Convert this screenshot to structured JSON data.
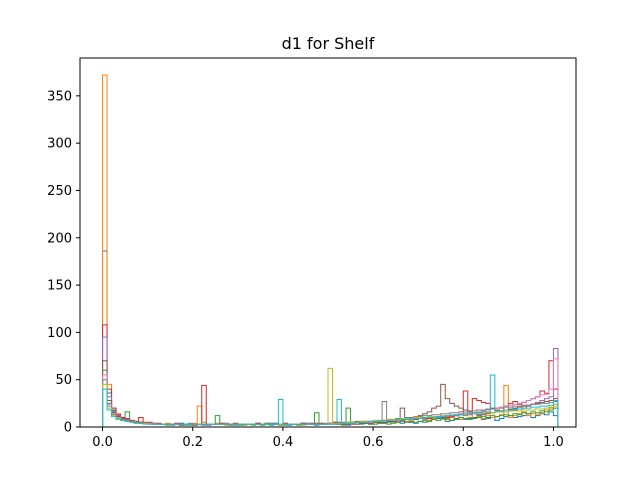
{
  "chart_data": {
    "type": "histogram",
    "title": "d1 for Shelf",
    "xlabel": "",
    "ylabel": "",
    "xlim": [
      -0.05,
      1.05
    ],
    "ylim": [
      0,
      390
    ],
    "xticks": [
      0.0,
      0.2,
      0.4,
      0.6,
      0.8,
      1.0
    ],
    "xtick_labels": [
      "0.0",
      "0.2",
      "0.4",
      "0.6",
      "0.8",
      "1.0"
    ],
    "yticks": [
      0,
      50,
      100,
      150,
      200,
      250,
      300,
      350
    ],
    "ytick_labels": [
      "0",
      "50",
      "100",
      "150",
      "200",
      "250",
      "300",
      "350"
    ],
    "grid": false,
    "legend": "none",
    "histtype": "step",
    "bin_width": 0.01,
    "series": [
      {
        "color": "#1f77b4",
        "values": [
          186,
          36,
          18,
          12,
          9,
          8,
          6,
          5,
          5,
          4,
          4,
          3,
          3,
          3,
          3,
          2,
          3,
          4,
          3,
          2,
          3,
          3,
          2,
          2,
          3,
          3,
          4,
          3,
          3,
          2,
          3,
          2,
          3,
          3,
          4,
          3,
          3,
          2,
          4,
          3,
          3,
          2,
          3,
          3,
          4,
          3,
          3,
          2,
          3,
          3,
          4,
          5,
          3,
          3,
          2,
          4,
          5,
          6,
          4,
          3,
          5,
          4,
          4,
          5,
          6,
          5,
          4,
          6,
          5,
          4,
          6,
          5,
          7,
          8,
          9,
          10,
          6,
          7,
          9,
          8,
          8,
          9,
          10,
          12,
          8,
          9,
          10,
          7,
          9,
          11,
          12,
          10,
          11,
          12,
          14,
          10,
          12,
          14,
          13,
          16,
          12
        ]
      },
      {
        "color": "#ff7f0e",
        "values": [
          372,
          45,
          20,
          14,
          10,
          9,
          7,
          6,
          5,
          4,
          4,
          3,
          3,
          3,
          4,
          3,
          3,
          2,
          2,
          3,
          4,
          22,
          5,
          3,
          3,
          4,
          3,
          2,
          2,
          3,
          3,
          2,
          3,
          3,
          3,
          2,
          4,
          3,
          3,
          3,
          4,
          3,
          3,
          3,
          2,
          4,
          3,
          3,
          4,
          3,
          3,
          4,
          3,
          3,
          4,
          3,
          3,
          4,
          4,
          3,
          5,
          5,
          6,
          7,
          5,
          6,
          8,
          6,
          7,
          8,
          9,
          8,
          7,
          9,
          10,
          8,
          9,
          10,
          12,
          8,
          9,
          10,
          14,
          11,
          9,
          12,
          10,
          11,
          13,
          44,
          10,
          12,
          14,
          16,
          12,
          14,
          13,
          15,
          18,
          20,
          24
        ]
      },
      {
        "color": "#2ca02c",
        "values": [
          60,
          25,
          16,
          11,
          9,
          16,
          6,
          5,
          5,
          4,
          4,
          3,
          3,
          3,
          2,
          3,
          3,
          2,
          2,
          3,
          2,
          3,
          3,
          2,
          3,
          12,
          3,
          3,
          2,
          3,
          2,
          3,
          3,
          2,
          3,
          2,
          4,
          3,
          3,
          2,
          2,
          3,
          3,
          2,
          4,
          3,
          3,
          15,
          3,
          3,
          4,
          3,
          3,
          2,
          20,
          3,
          3,
          3,
          4,
          3,
          3,
          4,
          4,
          3,
          4,
          5,
          6,
          5,
          6,
          5,
          6,
          7,
          6,
          8,
          7,
          9,
          8,
          7,
          8,
          10,
          9,
          8,
          9,
          10,
          11,
          10,
          12,
          11,
          12,
          13,
          12,
          14,
          13,
          15,
          14,
          16,
          15,
          17,
          16,
          18,
          20
        ]
      },
      {
        "color": "#d62728",
        "values": [
          108,
          40,
          20,
          13,
          10,
          9,
          7,
          6,
          10,
          5,
          5,
          4,
          4,
          3,
          3,
          3,
          4,
          3,
          3,
          3,
          2,
          3,
          44,
          3,
          3,
          3,
          4,
          3,
          3,
          4,
          3,
          3,
          3,
          3,
          4,
          3,
          3,
          4,
          3,
          3,
          4,
          3,
          3,
          3,
          4,
          3,
          4,
          4,
          4,
          3,
          4,
          5,
          5,
          4,
          5,
          5,
          6,
          5,
          6,
          6,
          5,
          6,
          7,
          6,
          7,
          8,
          7,
          8,
          9,
          8,
          9,
          10,
          9,
          10,
          11,
          12,
          10,
          11,
          12,
          13,
          38,
          14,
          30,
          28,
          26,
          25,
          20,
          18,
          16,
          22,
          25,
          27,
          24,
          26,
          28,
          30,
          32,
          38,
          35,
          70,
          40
        ]
      },
      {
        "color": "#9467bd",
        "values": [
          95,
          32,
          17,
          12,
          9,
          8,
          6,
          5,
          5,
          4,
          4,
          4,
          3,
          3,
          3,
          3,
          3,
          3,
          3,
          4,
          3,
          3,
          3,
          2,
          3,
          3,
          3,
          4,
          3,
          3,
          3,
          3,
          3,
          3,
          3,
          3,
          3,
          4,
          3,
          3,
          3,
          3,
          3,
          3,
          3,
          4,
          3,
          3,
          3,
          4,
          4,
          4,
          4,
          5,
          4,
          5,
          5,
          5,
          5,
          6,
          5,
          6,
          6,
          7,
          6,
          7,
          7,
          8,
          8,
          9,
          9,
          9,
          10,
          11,
          10,
          11,
          11,
          12,
          12,
          13,
          12,
          13,
          14,
          13,
          14,
          15,
          15,
          16,
          17,
          16,
          17,
          18,
          19,
          20,
          22,
          24,
          26,
          28,
          30,
          32,
          83
        ]
      },
      {
        "color": "#8c564b",
        "values": [
          70,
          28,
          15,
          11,
          9,
          7,
          6,
          5,
          5,
          4,
          4,
          3,
          3,
          3,
          3,
          3,
          3,
          2,
          3,
          3,
          3,
          3,
          3,
          3,
          3,
          3,
          3,
          3,
          3,
          3,
          3,
          3,
          3,
          3,
          3,
          3,
          3,
          3,
          3,
          3,
          3,
          3,
          3,
          3,
          3,
          3,
          3,
          3,
          3,
          3,
          3,
          3,
          3,
          3,
          3,
          3,
          3,
          4,
          4,
          4,
          5,
          5,
          5,
          6,
          6,
          7,
          20,
          8,
          9,
          10,
          12,
          14,
          16,
          20,
          22,
          45,
          30,
          25,
          22,
          20,
          18,
          16,
          15,
          14,
          13,
          14,
          15,
          16,
          17,
          18,
          19,
          20,
          21,
          22,
          23,
          24,
          25,
          26,
          27,
          28,
          30
        ]
      },
      {
        "color": "#e377c2",
        "values": [
          55,
          24,
          14,
          10,
          8,
          7,
          6,
          5,
          4,
          4,
          4,
          3,
          3,
          3,
          3,
          3,
          3,
          3,
          3,
          3,
          3,
          3,
          3,
          3,
          3,
          3,
          3,
          3,
          3,
          3,
          3,
          3,
          3,
          3,
          3,
          3,
          3,
          3,
          3,
          3,
          3,
          3,
          3,
          3,
          3,
          3,
          3,
          3,
          3,
          3,
          4,
          4,
          4,
          4,
          4,
          4,
          5,
          5,
          5,
          5,
          6,
          6,
          6,
          7,
          7,
          7,
          8,
          8,
          8,
          9,
          9,
          10,
          10,
          11,
          11,
          12,
          12,
          13,
          13,
          14,
          14,
          15,
          15,
          16,
          17,
          18,
          19,
          20,
          21,
          22,
          23,
          24,
          25,
          26,
          28,
          30,
          32,
          34,
          36,
          40,
          72
        ]
      },
      {
        "color": "#7f7f7f",
        "values": [
          50,
          22,
          13,
          9,
          8,
          7,
          6,
          5,
          4,
          4,
          3,
          3,
          3,
          3,
          3,
          3,
          3,
          3,
          3,
          3,
          3,
          3,
          3,
          3,
          3,
          3,
          3,
          3,
          3,
          3,
          3,
          3,
          3,
          3,
          3,
          3,
          3,
          3,
          3,
          3,
          3,
          3,
          3,
          3,
          3,
          3,
          3,
          3,
          3,
          3,
          3,
          4,
          4,
          4,
          4,
          5,
          5,
          5,
          6,
          6,
          6,
          7,
          27,
          8,
          8,
          9,
          9,
          10,
          10,
          11,
          11,
          12,
          12,
          13,
          13,
          14,
          14,
          15,
          15,
          16,
          16,
          17,
          17,
          18,
          18,
          19,
          19,
          20,
          20,
          21,
          21,
          22,
          22,
          23,
          23,
          24,
          24,
          25,
          25,
          26,
          27
        ]
      },
      {
        "color": "#bcbd22",
        "values": [
          45,
          20,
          12,
          9,
          7,
          6,
          5,
          4,
          4,
          4,
          3,
          3,
          3,
          3,
          3,
          3,
          3,
          3,
          3,
          3,
          3,
          3,
          3,
          3,
          3,
          3,
          3,
          3,
          3,
          3,
          3,
          3,
          3,
          3,
          3,
          3,
          3,
          3,
          3,
          3,
          3,
          3,
          3,
          3,
          3,
          3,
          3,
          3,
          3,
          3,
          62,
          4,
          4,
          4,
          5,
          5,
          5,
          6,
          6,
          6,
          7,
          7,
          7,
          8,
          8,
          8,
          9,
          9,
          9,
          10,
          10,
          10,
          11,
          11,
          11,
          12,
          12,
          12,
          13,
          13,
          13,
          14,
          14,
          14,
          15,
          15,
          15,
          16,
          16,
          16,
          17,
          17,
          17,
          18,
          18,
          18,
          19,
          19,
          20,
          21,
          22
        ]
      },
      {
        "color": "#17becf",
        "values": [
          40,
          18,
          11,
          8,
          7,
          6,
          5,
          4,
          4,
          3,
          3,
          3,
          3,
          3,
          3,
          3,
          3,
          3,
          3,
          3,
          3,
          3,
          3,
          3,
          3,
          3,
          3,
          3,
          3,
          3,
          3,
          3,
          3,
          3,
          3,
          3,
          3,
          3,
          3,
          29,
          3,
          3,
          3,
          3,
          3,
          3,
          3,
          3,
          3,
          3,
          3,
          3,
          29,
          4,
          4,
          4,
          5,
          5,
          5,
          6,
          6,
          6,
          7,
          7,
          7,
          8,
          8,
          8,
          9,
          9,
          9,
          10,
          10,
          10,
          11,
          11,
          12,
          12,
          13,
          13,
          14,
          14,
          15,
          15,
          16,
          16,
          55,
          17,
          17,
          18,
          18,
          19,
          19,
          20,
          20,
          21,
          21,
          22,
          22,
          23,
          28
        ]
      }
    ]
  }
}
